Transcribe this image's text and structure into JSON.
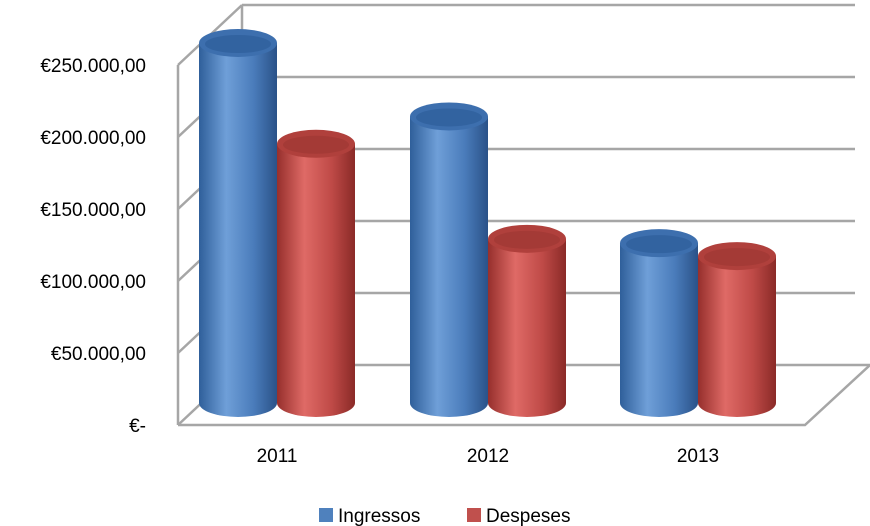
{
  "chart_data": {
    "type": "bar",
    "style": "3d-cylinder",
    "title": "",
    "xlabel": "",
    "ylabel": "",
    "categories": [
      "2011",
      "2012",
      "2013"
    ],
    "ylim": [
      0,
      250000
    ],
    "yticks": [
      0,
      50000,
      100000,
      150000,
      200000,
      250000
    ],
    "ytick_labels": [
      "€-",
      "€50.000,00",
      "€100.000,00",
      "€150.000,00",
      "€200.000,00",
      "€250.000,00"
    ],
    "grid": true,
    "legend_position": "bottom",
    "series": [
      {
        "name": "Ingressos",
        "color": "#4F81BD",
        "values": [
          250000,
          199000,
          111000
        ]
      },
      {
        "name": "Despeses",
        "color": "#C0504D",
        "values": [
          180000,
          114000,
          102000
        ]
      }
    ]
  }
}
